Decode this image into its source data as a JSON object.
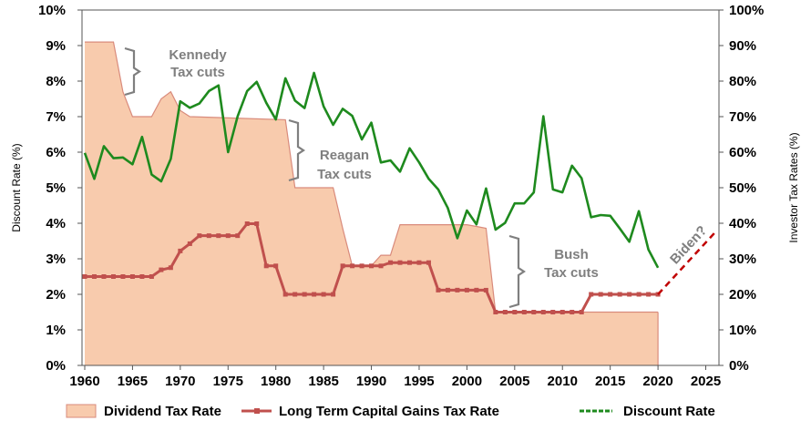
{
  "chart_data": {
    "type": "line",
    "y_left_label": "Discount Rate (%)",
    "y_right_label": "Investor Tax Rates (%)",
    "xlim": [
      1960,
      2026
    ],
    "ylim_left": [
      0,
      10
    ],
    "ylim_right": [
      0,
      100
    ],
    "x_ticks": [
      "1960",
      "1965",
      "1970",
      "1975",
      "1980",
      "1985",
      "1990",
      "1995",
      "2000",
      "2005",
      "2010",
      "2015",
      "2020",
      "2025"
    ],
    "y_left_ticks": [
      "0%",
      "1%",
      "2%",
      "3%",
      "4%",
      "5%",
      "6%",
      "7%",
      "8%",
      "9%",
      "10%"
    ],
    "y_right_ticks": [
      "0%",
      "10%",
      "20%",
      "30%",
      "40%",
      "50%",
      "60%",
      "70%",
      "80%",
      "90%",
      "100%"
    ],
    "legend_position": "bottom",
    "series": [
      {
        "name": "Dividend Tax Rate",
        "style": "area",
        "axis": "right",
        "color": "#f8cbad",
        "edge_color": "#d98b7c",
        "points": [
          [
            1960,
            91
          ],
          [
            1963,
            91
          ],
          [
            1964,
            77
          ],
          [
            1965,
            70
          ],
          [
            1967,
            70
          ],
          [
            1968,
            75
          ],
          [
            1969,
            77
          ],
          [
            1970,
            71.75
          ],
          [
            1971,
            70
          ],
          [
            1981,
            69.13
          ],
          [
            1982,
            50
          ],
          [
            1986,
            50
          ],
          [
            1987,
            38.5
          ],
          [
            1988,
            28
          ],
          [
            1990,
            28
          ],
          [
            1991,
            31
          ],
          [
            1992,
            31
          ],
          [
            1993,
            39.6
          ],
          [
            2000,
            39.6
          ],
          [
            2001,
            39.1
          ],
          [
            2002,
            38.6
          ],
          [
            2003,
            15
          ],
          [
            2020,
            15
          ]
        ]
      },
      {
        "name": "Long Term Capital Gains Tax Rate",
        "style": "line-marker",
        "axis": "right",
        "color": "#c0504d",
        "points": [
          [
            1960,
            25
          ],
          [
            1967,
            25
          ],
          [
            1968,
            26.9
          ],
          [
            1969,
            27.5
          ],
          [
            1970,
            32.21
          ],
          [
            1971,
            34.25
          ],
          [
            1972,
            36.5
          ],
          [
            1976,
            36.5
          ],
          [
            1977,
            39.875
          ],
          [
            1978,
            39.875
          ],
          [
            1979,
            28
          ],
          [
            1980,
            28
          ],
          [
            1981,
            20
          ],
          [
            1986,
            20
          ],
          [
            1987,
            28
          ],
          [
            1991,
            28
          ],
          [
            1992,
            28.93
          ],
          [
            1996,
            28.93
          ],
          [
            1997,
            21.19
          ],
          [
            2001,
            21.19
          ],
          [
            2002,
            21.17
          ],
          [
            2003,
            15
          ],
          [
            2012,
            15
          ],
          [
            2013,
            20
          ],
          [
            2020,
            20
          ]
        ]
      },
      {
        "name": "Discount Rate",
        "style": "line",
        "axis": "left",
        "color": "#1e8a1e",
        "points": [
          [
            1960,
            5.98
          ],
          [
            1961,
            5.25
          ],
          [
            1962,
            6.17
          ],
          [
            1963,
            5.83
          ],
          [
            1964,
            5.85
          ],
          [
            1965,
            5.66
          ],
          [
            1966,
            6.43
          ],
          [
            1967,
            5.37
          ],
          [
            1968,
            5.18
          ],
          [
            1969,
            5.81
          ],
          [
            1970,
            7.43
          ],
          [
            1971,
            7.25
          ],
          [
            1972,
            7.37
          ],
          [
            1973,
            7.72
          ],
          [
            1974,
            7.88
          ],
          [
            1975,
            6.0
          ],
          [
            1976,
            7.01
          ],
          [
            1977,
            7.72
          ],
          [
            1978,
            7.98
          ],
          [
            1979,
            7.39
          ],
          [
            1980,
            6.92
          ],
          [
            1981,
            8.08
          ],
          [
            1982,
            7.45
          ],
          [
            1983,
            7.24
          ],
          [
            1984,
            8.23
          ],
          [
            1985,
            7.29
          ],
          [
            1986,
            6.77
          ],
          [
            1987,
            7.22
          ],
          [
            1988,
            7.02
          ],
          [
            1989,
            6.36
          ],
          [
            1990,
            6.83
          ],
          [
            1991,
            5.71
          ],
          [
            1992,
            5.77
          ],
          [
            1993,
            5.45
          ],
          [
            1994,
            6.11
          ],
          [
            1995,
            5.71
          ],
          [
            1996,
            5.25
          ],
          [
            1997,
            4.95
          ],
          [
            1998,
            4.43
          ],
          [
            1999,
            3.58
          ],
          [
            2000,
            4.36
          ],
          [
            2001,
            3.97
          ],
          [
            2002,
            4.98
          ],
          [
            2003,
            3.82
          ],
          [
            2004,
            4.01
          ],
          [
            2005,
            4.56
          ],
          [
            2006,
            4.56
          ],
          [
            2007,
            4.87
          ],
          [
            2008,
            7.01
          ],
          [
            2009,
            4.95
          ],
          [
            2010,
            4.87
          ],
          [
            2011,
            5.62
          ],
          [
            2012,
            5.27
          ],
          [
            2013,
            4.17
          ],
          [
            2014,
            4.23
          ],
          [
            2015,
            4.21
          ],
          [
            2016,
            3.85
          ],
          [
            2017,
            3.48
          ],
          [
            2018,
            4.34
          ],
          [
            2019,
            3.26
          ],
          [
            2020,
            2.75
          ]
        ]
      },
      {
        "name": "Biden?",
        "style": "dashed",
        "axis": "right",
        "color": "#c00000",
        "points": [
          [
            2020,
            20
          ],
          [
            2026,
            37.5
          ]
        ]
      }
    ],
    "annotations": [
      {
        "id": "kennedy",
        "lines": [
          "Kennedy",
          "Tax cuts"
        ]
      },
      {
        "id": "reagan",
        "lines": [
          "Reagan",
          "Tax cuts"
        ]
      },
      {
        "id": "bush",
        "lines": [
          "Bush",
          "Tax cuts"
        ]
      },
      {
        "id": "biden",
        "lines": [
          "Biden?"
        ]
      }
    ],
    "legend": [
      {
        "label": "Dividend Tax Rate",
        "swatch": "area"
      },
      {
        "label": "Long Term Capital Gains Tax Rate",
        "swatch": "line-marker"
      },
      {
        "label": "Discount Rate",
        "swatch": "line"
      }
    ]
  }
}
